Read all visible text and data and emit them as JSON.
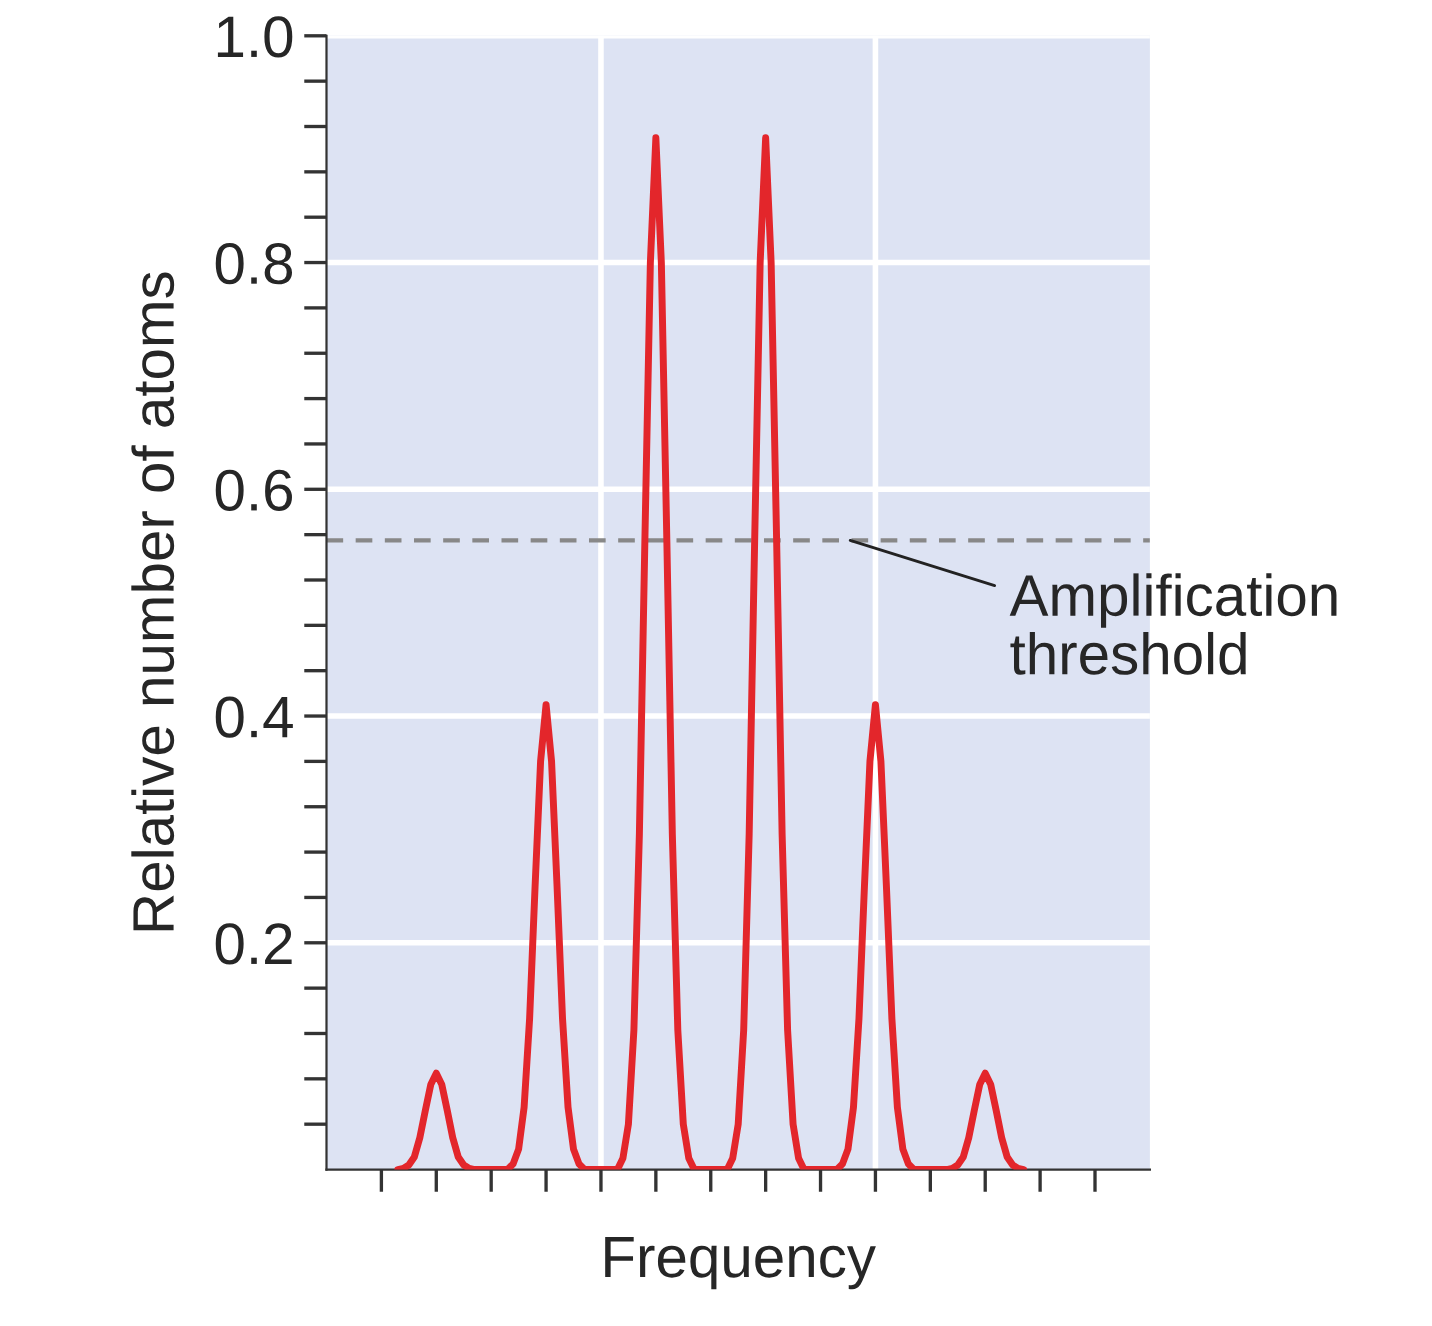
{
  "chart_data": {
    "type": "line",
    "xlabel": "Frequency",
    "ylabel": "Relative number of atoms",
    "categories": [
      null,
      null,
      null,
      null,
      null,
      null,
      null,
      null,
      null,
      null,
      null,
      null,
      null,
      null,
      null,
      null,
      null,
      null,
      null,
      null,
      null,
      null,
      null,
      null,
      null,
      null,
      null,
      null,
      null,
      null,
      null,
      null,
      null,
      null,
      null,
      null,
      null,
      null,
      null,
      null,
      null,
      null,
      null,
      null,
      null,
      null,
      null,
      null,
      null,
      null,
      null,
      null,
      null,
      null,
      null,
      null,
      null,
      null,
      null,
      null,
      null,
      null,
      null,
      null,
      null,
      null,
      null,
      null,
      null,
      null,
      null,
      null,
      null,
      null,
      null,
      null,
      null,
      null,
      null,
      null,
      null,
      null,
      null,
      null,
      null,
      null,
      null,
      null,
      null,
      null,
      null,
      null,
      null,
      null,
      null,
      null,
      null,
      null,
      null,
      null,
      null,
      null,
      null,
      null,
      null,
      null,
      null,
      null,
      null,
      null,
      null,
      null,
      null,
      null,
      null,
      null,
      null,
      null,
      null,
      null,
      null,
      null,
      null,
      null,
      null,
      null,
      null,
      null,
      null,
      null,
      null,
      null,
      null,
      null,
      null,
      null,
      null,
      null,
      null,
      null,
      null,
      null,
      null,
      null,
      null,
      null,
      null,
      null,
      null,
      null,
      null
    ],
    "series": [
      {
        "color": "#e3262b",
        "values": [
          null,
          null,
          null,
          null,
          null,
          null,
          null,
          null,
          null,
          null,
          null,
          null,
          null,
          0,
          0.001,
          0.004,
          0.011,
          0.028,
          0.052,
          0.075,
          0.085,
          0.075,
          0.052,
          0.028,
          0.011,
          0.004,
          0.001,
          0,
          0,
          0,
          0,
          0,
          0,
          0,
          0.005,
          0.018,
          0.055,
          0.133,
          0.25,
          0.36,
          0.41,
          0.36,
          0.25,
          0.133,
          0.055,
          0.018,
          0.005,
          0,
          0,
          0,
          0,
          0,
          0,
          0,
          0.01,
          0.04,
          0.123,
          0.296,
          0.555,
          0.8,
          0.91,
          0.8,
          0.555,
          0.296,
          0.123,
          0.04,
          0.01,
          0,
          0,
          0,
          0,
          0,
          0,
          0,
          0.01,
          0.04,
          0.123,
          0.296,
          0.555,
          0.8,
          0.91,
          0.8,
          0.555,
          0.296,
          0.123,
          0.04,
          0.01,
          0,
          0,
          0,
          0,
          0,
          0,
          0,
          0.005,
          0.018,
          0.055,
          0.133,
          0.25,
          0.36,
          0.41,
          0.36,
          0.25,
          0.133,
          0.055,
          0.018,
          0.005,
          0,
          0,
          0,
          0,
          0,
          0,
          0,
          0.001,
          0.004,
          0.011,
          0.028,
          0.052,
          0.075,
          0.085,
          0.075,
          0.052,
          0.028,
          0.011,
          0.004,
          0.001,
          0,
          null,
          null,
          null,
          null,
          null,
          null,
          null,
          null,
          null,
          null,
          null,
          null,
          null,
          null,
          null,
          null,
          null,
          null,
          null,
          null,
          null,
          null,
          null
        ]
      }
    ],
    "ylim": [
      0,
      1.0
    ],
    "yticks": [
      {
        "value": 0.04,
        "label": null
      },
      {
        "value": 0.08,
        "label": null
      },
      {
        "value": 0.12,
        "label": null
      },
      {
        "value": 0.16,
        "label": null
      },
      {
        "value": 0.2,
        "label": "0.2"
      },
      {
        "value": 0.24,
        "label": null
      },
      {
        "value": 0.28,
        "label": null
      },
      {
        "value": 0.32,
        "label": null
      },
      {
        "value": 0.36,
        "label": null
      },
      {
        "value": 0.4,
        "label": "0.4"
      },
      {
        "value": 0.44,
        "label": null
      },
      {
        "value": 0.48,
        "label": null
      },
      {
        "value": 0.52,
        "label": null
      },
      {
        "value": 0.56,
        "label": null
      },
      {
        "value": 0.6,
        "label": "0.6"
      },
      {
        "value": 0.64,
        "label": null
      },
      {
        "value": 0.68,
        "label": null
      },
      {
        "value": 0.72,
        "label": null
      },
      {
        "value": 0.76,
        "label": null
      },
      {
        "value": 0.8,
        "label": "0.8"
      },
      {
        "value": 0.84,
        "label": null
      },
      {
        "value": 0.88,
        "label": null
      },
      {
        "value": 0.92,
        "label": null
      },
      {
        "value": 0.96,
        "label": null
      },
      {
        "value": 1.0,
        "label": "1.0"
      }
    ],
    "grid": true,
    "ref_lines": [
      {
        "axis": "y",
        "value": 0.555,
        "label": "Amplification\nthreshold",
        "color": "#888888",
        "line_style": "dashed"
      }
    ],
    "marker": "none",
    "line_style": "solid"
  }
}
